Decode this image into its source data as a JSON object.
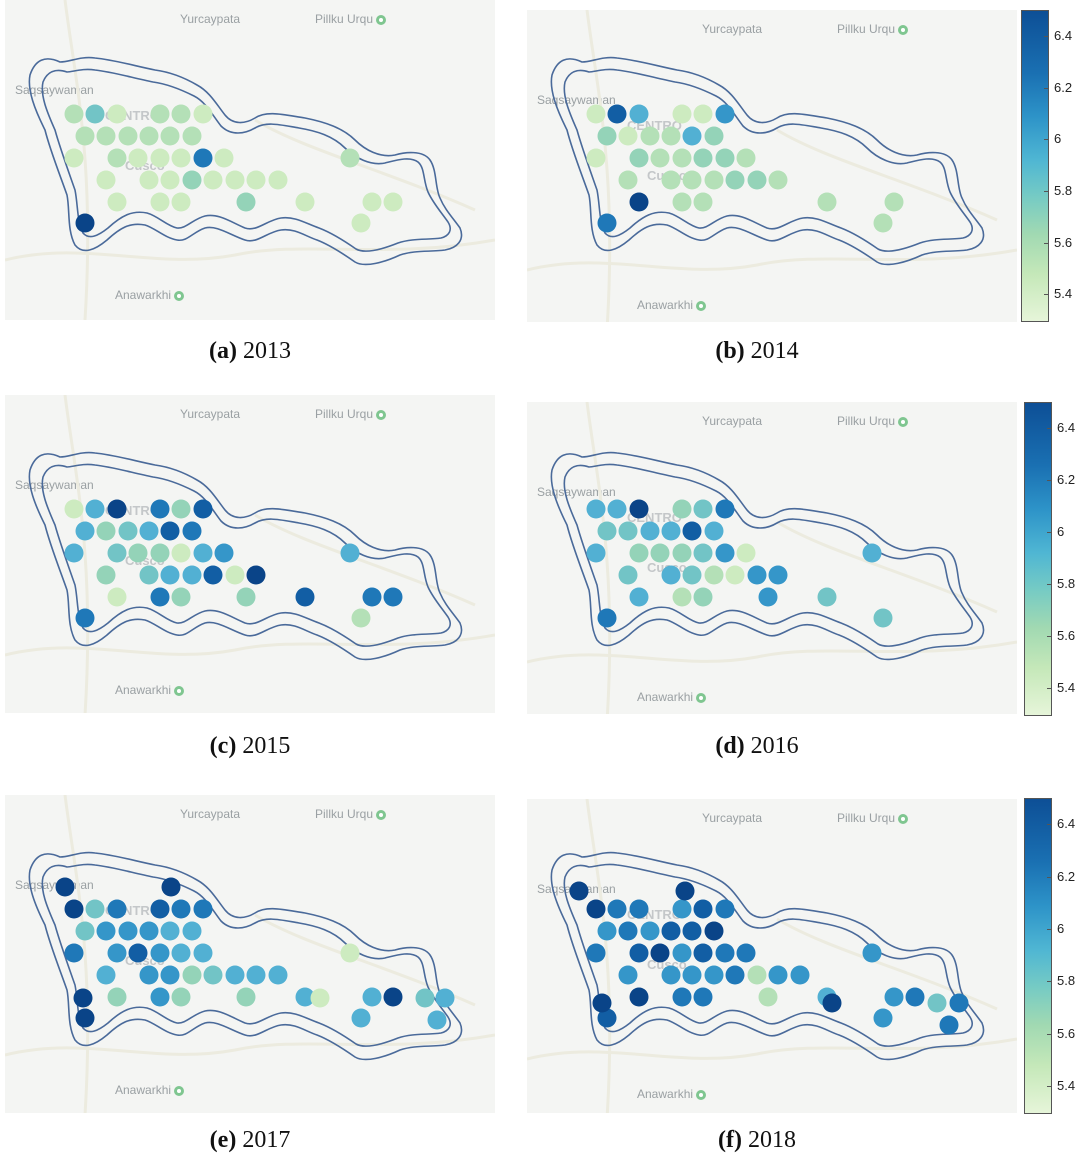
{
  "panels": [
    {
      "letter": "(a)",
      "year": "2013"
    },
    {
      "letter": "(b)",
      "year": "2014"
    },
    {
      "letter": "(c)",
      "year": "2015"
    },
    {
      "letter": "(d)",
      "year": "2016"
    },
    {
      "letter": "(e)",
      "year": "2017"
    },
    {
      "letter": "(f)",
      "year": "2018"
    }
  ],
  "map_labels": {
    "place1": "Yurcaypata",
    "place2": "Pillku Urqu",
    "place3": "Saqsaywaman",
    "place4": "CENTRO",
    "place5": "Cusco",
    "place6": "Anawarkhi"
  },
  "colorbar": {
    "ticks": [
      "6.4",
      "6.2",
      "6",
      "5.8",
      "5.6",
      "5.4"
    ],
    "min": 5.3,
    "max": 6.5
  },
  "colors": {
    "boundary": "#4a6a9a",
    "low": "#e6f5d9",
    "high": "#0d4f96"
  }
}
